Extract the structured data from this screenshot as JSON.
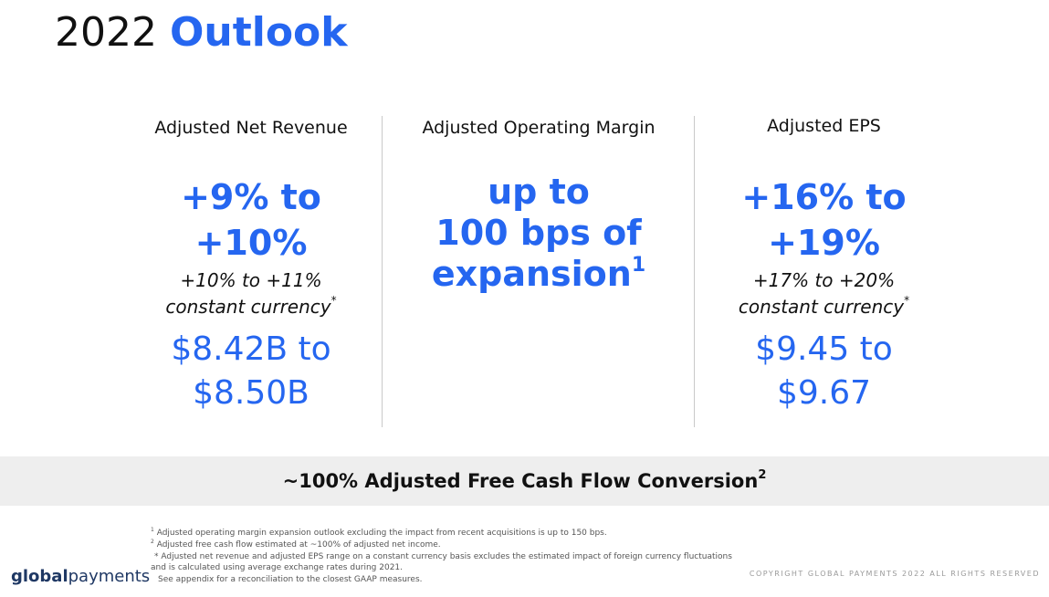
{
  "title": {
    "year": "2022",
    "word": "Outlook"
  },
  "columns": [
    {
      "heading": "Adjusted Net Revenue",
      "big_line1": "+9% to",
      "big_line2": "+10%",
      "cc_line1": "+10% to +11%",
      "cc_line2": "constant currency",
      "cc_mark": "*",
      "range_line1": "$8.42B to",
      "range_line2": "$8.50B"
    },
    {
      "heading": "Adjusted Operating Margin",
      "big_line1": "up to",
      "big_line2": "100 bps of",
      "big_line3": "expansion",
      "big_mark": "1"
    },
    {
      "heading": "Adjusted EPS",
      "big_line1": "+16% to",
      "big_line2": "+19%",
      "cc_line1": "+17% to +20%",
      "cc_line2": "constant currency",
      "cc_mark": "*",
      "range_line1": "$9.45 to",
      "range_line2": "$9.67"
    }
  ],
  "band": {
    "text": "~100% Adjusted Free Cash Flow Conversion",
    "mark": "2"
  },
  "footnotes": {
    "n1_mark": "1",
    "n1": "Adjusted operating margin expansion outlook excluding the impact from recent acquisitions is up to 150 bps.",
    "n2_mark": "2",
    "n2": "Adjusted free cash flow estimated at ~100% of adjusted net income.",
    "n3a": "* Adjusted net revenue and adjusted EPS range on a constant currency basis excludes the estimated impact of foreign currency fluctuations",
    "n3b": "and is calculated using average exchange rates during 2021.",
    "n4": "See appendix for a reconciliation to the closest GAAP measures."
  },
  "logo": {
    "bold": "global",
    "normal": "payments"
  },
  "copyright": "COPYRIGHT GLOBAL PAYMENTS 2022 ALL RIGHTS RESERVED",
  "colors": {
    "accent": "#2566f0",
    "band": "#eeeeee",
    "logo": "#1f3864"
  }
}
